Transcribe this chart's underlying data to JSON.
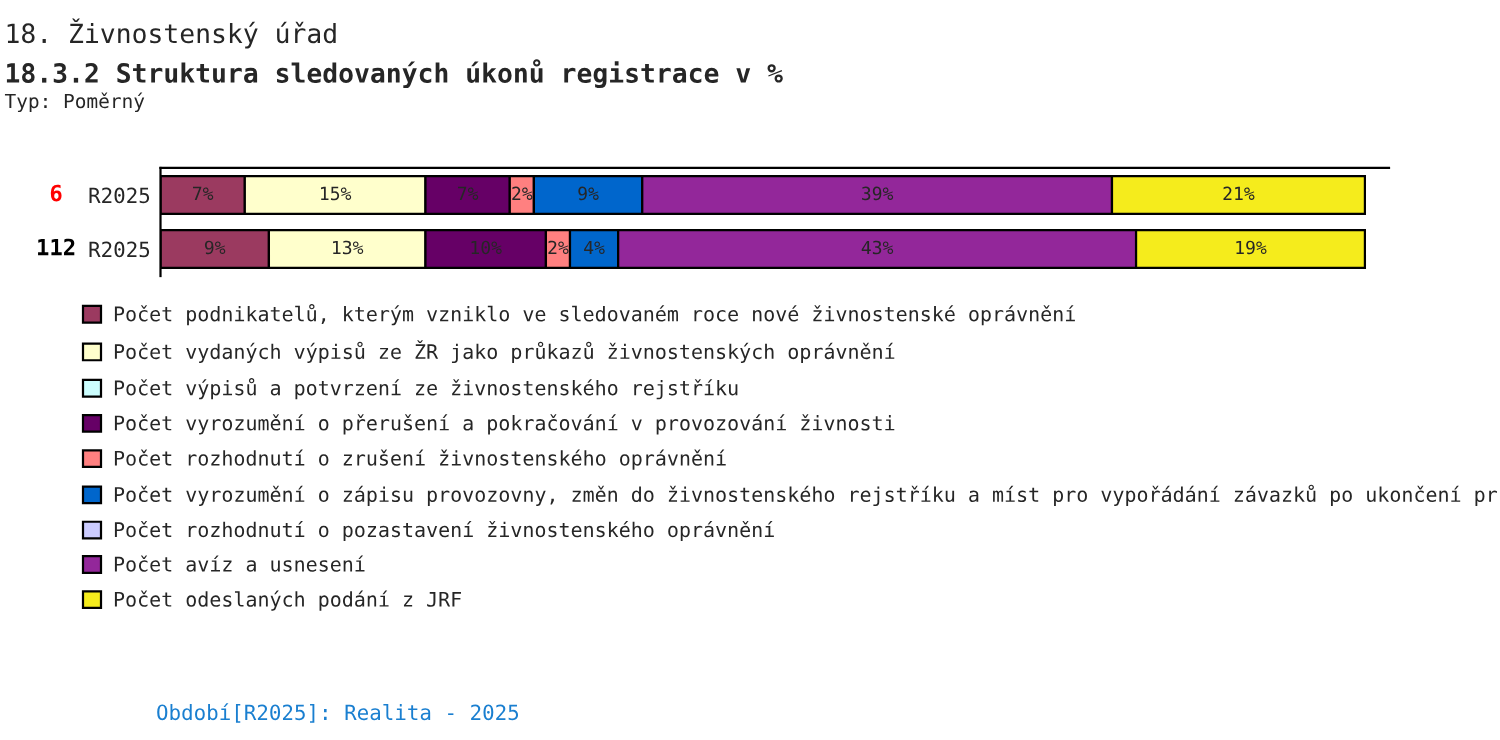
{
  "chart_data": {
    "type": "bar",
    "orientation": "horizontal",
    "stacked": true,
    "title": "18. Živnostenský úřad",
    "subtitle": "18.3.2 Struktura sledovaných úkonů registrace v %",
    "annotations": [
      "Typ: Poměrný",
      "6",
      "112",
      "Období[R2025]: Realita - 2025"
    ],
    "categories": [
      "R2025",
      "R2025"
    ],
    "xlim": [
      0,
      102
    ],
    "tick_labels": "y",
    "legend": "bottom",
    "grid": false,
    "series": [
      {
        "name": "Počet podnikatelů, kterým vzniklo ve sledovaném roce nové živnostenské oprávnění",
        "color": "#9b3a60",
        "values": [
          7,
          9
        ],
        "value_labels": [
          "7%",
          "9%"
        ]
      },
      {
        "name": "Počet vydaných výpisů ze ŽR jako průkazů živnostenských oprávnění",
        "color": "#ffffcc",
        "values": [
          15,
          13
        ],
        "value_labels": [
          "15%",
          "13%"
        ]
      },
      {
        "name": "Počet výpisů a potvrzení ze živnostenského rejstříku",
        "color": "#ccffff",
        "values": [
          0,
          0
        ],
        "value_labels": [
          null,
          null
        ]
      },
      {
        "name": "Počet vyrozumění o přerušení a pokračování v provozování živnosti",
        "color": "#660066",
        "values": [
          7,
          10
        ],
        "value_labels": [
          "7%",
          "10%"
        ]
      },
      {
        "name": "Počet rozhodnutí o zrušení živnostenského oprávnění",
        "color": "#ff8080",
        "values": [
          2,
          2
        ],
        "value_labels": [
          "2%",
          "2%"
        ]
      },
      {
        "name": "Počet vyrozumění o zápisu provozovny, změn do živnostenského rejstříku a míst pro vypořádání závazků po ukončení pr",
        "color": "#0066cc",
        "values": [
          9,
          4
        ],
        "value_labels": [
          "9%",
          "4%"
        ]
      },
      {
        "name": "Počet rozhodnutí o pozastavení živnostenského oprávnění",
        "color": "#ccccff",
        "values": [
          0,
          0
        ],
        "value_labels": [
          null,
          null
        ]
      },
      {
        "name": "Počet avíz a usnesení",
        "color": "#93279a",
        "values": [
          39,
          43
        ],
        "value_labels": [
          "39%",
          "43%"
        ]
      },
      {
        "name": "Počet odeslaných podání z JRF",
        "color": "#f5ec1c",
        "values": [
          21,
          19
        ],
        "value_labels": [
          "21%",
          "19%"
        ]
      }
    ]
  }
}
